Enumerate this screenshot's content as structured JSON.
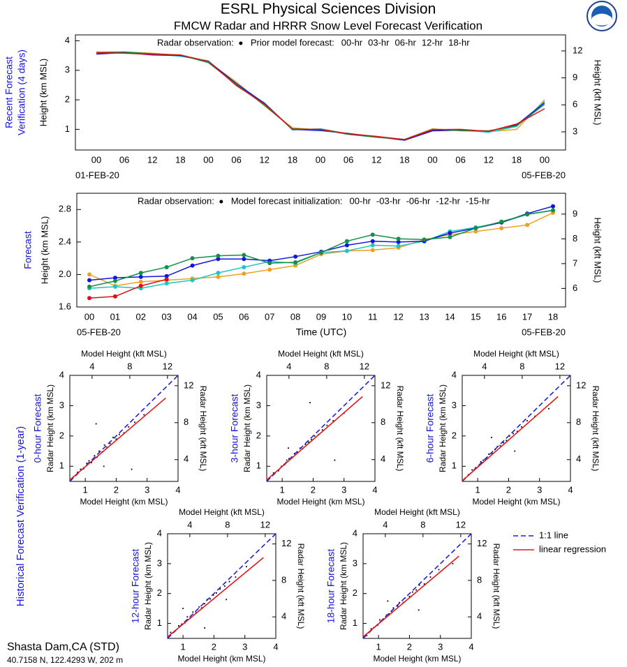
{
  "header": {
    "title": "ESRL Physical Sciences Division",
    "subtitle": "FMCW Radar and HRRR Snow Level Forecast Verification"
  },
  "footer": {
    "station": "Shasta Dam,CA (STD)",
    "location": "40.7158 N, 122.4293 W, 202 m"
  },
  "scatter_group": {
    "label": "Historical Forecast Verification (1-year)",
    "legend": [
      {
        "label": "1:1 line",
        "color": "#1f1fd8",
        "dashed": true
      },
      {
        "label": "linear regression",
        "color": "#e01818",
        "dashed": false
      }
    ]
  },
  "chart_data": [
    {
      "type": "line",
      "side_label": [
        "Recent Forecast",
        "Verification (4 days)"
      ],
      "ylabel": "Height (km MSL)",
      "y2label": "Height (kft MSL)",
      "observation_label": "Radar observation:",
      "legend_prefix": "Prior model forecast:",
      "categories": [
        "00",
        "06",
        "12",
        "18",
        "00",
        "06",
        "12",
        "18",
        "00",
        "06",
        "12",
        "18",
        "00",
        "06",
        "12",
        "18",
        "00"
      ],
      "date_labels": [
        "01-FEB-20",
        "05-FEB-20"
      ],
      "ylim": [
        0.3,
        4.2
      ],
      "yticks": [
        1,
        2,
        3,
        4
      ],
      "y2lim": [
        0.98,
        13.78
      ],
      "y2ticks": [
        3,
        6,
        9,
        12
      ],
      "markers": false,
      "series": [
        {
          "name": "00-hr",
          "color": "#f0a020",
          "values": [
            3.62,
            3.62,
            3.58,
            3.5,
            3.28,
            2.6,
            1.8,
            1.05,
            0.98,
            0.85,
            0.76,
            0.66,
            1.02,
            0.95,
            0.92,
            1.0,
            2.0
          ]
        },
        {
          "name": "03-hr",
          "color": "#20c4c4",
          "values": [
            3.58,
            3.6,
            3.55,
            3.48,
            3.32,
            2.5,
            1.9,
            0.98,
            1.02,
            0.84,
            0.74,
            0.64,
            0.98,
            0.98,
            0.9,
            1.1,
            1.95
          ]
        },
        {
          "name": "06-hr",
          "color": "#1414e0",
          "values": [
            3.55,
            3.6,
            3.52,
            3.5,
            3.3,
            2.55,
            1.88,
            1.0,
            0.96,
            0.86,
            0.75,
            0.63,
            0.95,
            0.97,
            0.94,
            1.15,
            1.9
          ]
        },
        {
          "name": "12-hr",
          "color": "#129048",
          "values": [
            3.6,
            3.62,
            3.56,
            3.52,
            3.26,
            2.52,
            1.82,
            1.02,
            0.99,
            0.83,
            0.73,
            0.66,
            1.0,
            0.96,
            0.95,
            1.12,
            1.85
          ]
        },
        {
          "name": "18-hr",
          "color": "#e01010",
          "values": [
            3.6,
            3.58,
            3.54,
            3.52,
            3.3,
            2.48,
            1.86,
            1.0,
            1.0,
            0.85,
            0.76,
            0.65,
            0.99,
            1.0,
            0.93,
            1.18,
            1.7
          ]
        }
      ]
    },
    {
      "type": "line",
      "side_label": [
        "Forecast"
      ],
      "ylabel": "Height (km MSL)",
      "y2label": "Height (kft MSL)",
      "xlabel": "Time (UTC)",
      "observation_label": "Radar observation:",
      "legend_prefix": "Model forecast initialization:",
      "categories": [
        "00",
        "01",
        "02",
        "03",
        "04",
        "05",
        "06",
        "07",
        "08",
        "09",
        "10",
        "11",
        "12",
        "13",
        "14",
        "15",
        "16",
        "17",
        "18"
      ],
      "date_labels": [
        "05-FEB-20",
        "05-FEB-20"
      ],
      "ylim": [
        1.6,
        3.0
      ],
      "yticks": [
        1.6,
        {
          "value": 2,
          "label": "2.0"
        },
        2.4,
        2.8
      ],
      "y2lim": [
        5.25,
        9.84
      ],
      "y2ticks": [
        6,
        7,
        8,
        9
      ],
      "markers": true,
      "series": [
        {
          "name": "00-hr",
          "color": "#f0a020",
          "values": [
            2.0,
            1.86,
            1.91,
            1.93,
            1.95,
            1.97,
            2.01,
            2.06,
            2.11,
            2.25,
            2.29,
            2.3,
            2.33,
            2.43,
            2.49,
            2.53,
            2.57,
            2.61,
            2.76
          ]
        },
        {
          "name": "-03-hr",
          "color": "#20c4c4",
          "values": [
            1.83,
            1.85,
            1.83,
            1.89,
            1.93,
            2.02,
            2.09,
            2.16,
            2.14,
            2.27,
            2.29,
            2.36,
            2.35,
            2.41,
            2.53,
            2.58,
            2.64,
            2.74,
            2.79
          ]
        },
        {
          "name": "-06-hr",
          "color": "#1414e0",
          "values": [
            1.93,
            1.96,
            1.97,
            1.98,
            2.11,
            2.19,
            2.19,
            2.17,
            2.22,
            2.28,
            2.36,
            2.41,
            2.4,
            2.41,
            2.51,
            2.57,
            2.64,
            2.75,
            2.84
          ]
        },
        {
          "name": "-12-hr",
          "color": "#129048",
          "values": [
            1.85,
            1.92,
            2.02,
            2.09,
            2.2,
            2.23,
            2.24,
            2.14,
            2.15,
            2.27,
            2.41,
            2.49,
            2.44,
            2.43,
            2.46,
            2.57,
            2.65,
            2.74,
            2.79
          ]
        },
        {
          "name": "-15-hr",
          "color": "#e01010",
          "values": [
            1.71,
            1.73,
            1.86,
            1.94,
            null,
            null,
            null,
            null,
            null,
            null,
            null,
            null,
            null,
            null,
            null,
            null,
            null,
            null,
            null
          ]
        }
      ]
    },
    {
      "type": "scatter",
      "title": "0-hour Forecast",
      "xlabel": "Model Height (km MSL)",
      "x2label": "Model Height (kft MSL)",
      "ylabel": "Radar Height (km MSL)",
      "y2label": "Radar Height (kft MSL)",
      "xlim": [
        0.5,
        4
      ],
      "ylim": [
        0.5,
        4
      ],
      "xticks": [
        1,
        2,
        3,
        4
      ],
      "yticks": [
        1,
        2,
        3,
        4
      ],
      "x2lim": [
        1.64,
        13.12
      ],
      "y2lim": [
        1.64,
        13.12
      ],
      "x2ticks": [
        4,
        8,
        12
      ],
      "y2ticks": [
        4,
        8,
        12
      ],
      "points": {
        "x": [
          0.62,
          0.75,
          0.85,
          0.95,
          1.05,
          1.12,
          1.2,
          1.3,
          1.38,
          1.45,
          1.55,
          1.62,
          1.7,
          1.8,
          1.9,
          2.0,
          2.1,
          2.25,
          2.4,
          2.6,
          2.9,
          1.35,
          2.5,
          1.6
        ],
        "y": [
          0.65,
          0.8,
          0.9,
          0.92,
          1.1,
          1.18,
          1.12,
          1.35,
          1.3,
          1.5,
          1.48,
          1.7,
          1.62,
          1.75,
          1.95,
          1.9,
          2.05,
          2.1,
          2.3,
          2.45,
          2.7,
          2.4,
          0.9,
          1.0
        ]
      },
      "one_to_one": {
        "x": [
          0.5,
          4
        ],
        "y": [
          0.5,
          4
        ]
      },
      "regression": {
        "x": [
          0.5,
          3.6
        ],
        "y": [
          0.55,
          3.25
        ]
      }
    },
    {
      "type": "scatter",
      "title": "3-hour Forecast",
      "xlabel": "Model Height (km MSL)",
      "x2label": "Model Height (kft MSL)",
      "ylabel": "Radar Height (km MSL)",
      "y2label": "Radar Height (kft MSL)",
      "xlim": [
        0.5,
        4
      ],
      "ylim": [
        0.5,
        4
      ],
      "xticks": [
        1,
        2,
        3,
        4
      ],
      "yticks": [
        1,
        2,
        3,
        4
      ],
      "x2lim": [
        1.64,
        13.12
      ],
      "y2lim": [
        1.64,
        13.12
      ],
      "x2ticks": [
        4,
        8,
        12
      ],
      "y2ticks": [
        4,
        8,
        12
      ],
      "points": {
        "x": [
          0.6,
          0.72,
          0.88,
          0.98,
          1.08,
          1.15,
          1.22,
          1.33,
          1.4,
          1.5,
          1.58,
          1.66,
          1.75,
          1.85,
          1.95,
          2.05,
          2.18,
          2.3,
          2.45,
          2.65,
          3.0,
          1.2,
          2.7,
          1.9
        ],
        "y": [
          0.62,
          0.78,
          0.85,
          1.0,
          1.05,
          1.2,
          1.25,
          1.3,
          1.42,
          1.45,
          1.6,
          1.58,
          1.72,
          1.8,
          1.88,
          2.0,
          2.05,
          2.2,
          2.35,
          2.5,
          2.75,
          1.6,
          1.2,
          3.1
        ]
      },
      "one_to_one": {
        "x": [
          0.5,
          4
        ],
        "y": [
          0.5,
          4
        ]
      },
      "regression": {
        "x": [
          0.5,
          3.6
        ],
        "y": [
          0.55,
          3.3
        ]
      }
    },
    {
      "type": "scatter",
      "title": "6-hour Forecast",
      "xlabel": "Model Height (km MSL)",
      "x2label": "Model Height (kft MSL)",
      "ylabel": "Radar Height (km MSL)",
      "y2label": "Radar Height (kft MSL)",
      "xlim": [
        0.5,
        4
      ],
      "ylim": [
        0.5,
        4
      ],
      "xticks": [
        1,
        2,
        3,
        4
      ],
      "yticks": [
        1,
        2,
        3,
        4
      ],
      "x2lim": [
        1.64,
        13.12
      ],
      "y2lim": [
        1.64,
        13.12
      ],
      "x2ticks": [
        4,
        8,
        12
      ],
      "y2ticks": [
        4,
        8,
        12
      ],
      "points": {
        "x": [
          0.58,
          0.7,
          0.82,
          0.93,
          1.02,
          1.1,
          1.18,
          1.28,
          1.36,
          1.47,
          1.56,
          1.64,
          1.73,
          1.83,
          1.93,
          2.03,
          2.15,
          2.28,
          2.42,
          2.6,
          2.85,
          1.45,
          2.2,
          3.3
        ],
        "y": [
          0.6,
          0.72,
          0.88,
          0.95,
          1.0,
          1.15,
          1.2,
          1.25,
          1.4,
          1.42,
          1.55,
          1.65,
          1.68,
          1.78,
          1.85,
          2.0,
          2.08,
          2.15,
          2.3,
          2.5,
          2.65,
          1.95,
          1.5,
          2.9
        ]
      },
      "one_to_one": {
        "x": [
          0.5,
          4
        ],
        "y": [
          0.5,
          4
        ]
      },
      "regression": {
        "x": [
          0.5,
          3.6
        ],
        "y": [
          0.52,
          3.3
        ]
      }
    },
    {
      "type": "scatter",
      "title": "12-hour Forecast",
      "xlabel": "Model Height (km MSL)",
      "x2label": "Model Height (kft MSL)",
      "ylabel": "Radar Height (km MSL)",
      "y2label": "Radar Height (kft MSL)",
      "xlim": [
        0.5,
        4
      ],
      "ylim": [
        0.5,
        4
      ],
      "xticks": [
        1,
        2,
        3,
        4
      ],
      "yticks": [
        1,
        2,
        3,
        4
      ],
      "x2lim": [
        1.64,
        13.12
      ],
      "y2lim": [
        1.64,
        13.12
      ],
      "x2ticks": [
        4,
        8,
        12
      ],
      "y2ticks": [
        4,
        8,
        12
      ],
      "points": {
        "x": [
          0.6,
          0.74,
          0.86,
          0.96,
          1.06,
          1.14,
          1.24,
          1.32,
          1.42,
          1.52,
          1.6,
          1.7,
          1.78,
          1.88,
          1.98,
          2.08,
          2.2,
          2.35,
          2.5,
          2.7,
          3.05,
          1.0,
          2.4,
          1.7
        ],
        "y": [
          0.7,
          0.75,
          0.92,
          0.98,
          1.02,
          1.22,
          1.18,
          1.38,
          1.36,
          1.55,
          1.52,
          1.66,
          1.8,
          1.82,
          1.95,
          2.02,
          2.15,
          2.25,
          2.4,
          2.55,
          2.9,
          1.5,
          1.8,
          0.85
        ]
      },
      "one_to_one": {
        "x": [
          0.5,
          4
        ],
        "y": [
          0.5,
          4
        ]
      },
      "regression": {
        "x": [
          0.5,
          3.6
        ],
        "y": [
          0.55,
          3.2
        ]
      }
    },
    {
      "type": "scatter",
      "title": "18-hour Forecast",
      "xlabel": "Model Height (km MSL)",
      "x2label": "Model Height (kft MSL)",
      "ylabel": "Radar Height (km MSL)",
      "y2label": "Radar Height (kft MSL)",
      "xlim": [
        0.5,
        4
      ],
      "ylim": [
        0.5,
        4
      ],
      "xticks": [
        1,
        2,
        3,
        4
      ],
      "yticks": [
        1,
        2,
        3,
        4
      ],
      "x2lim": [
        1.64,
        13.12
      ],
      "y2lim": [
        1.64,
        13.12
      ],
      "x2ticks": [
        4,
        8,
        12
      ],
      "y2ticks": [
        4,
        8,
        12
      ],
      "points": {
        "x": [
          0.62,
          0.76,
          0.84,
          0.97,
          1.04,
          1.16,
          1.26,
          1.34,
          1.44,
          1.48,
          1.62,
          1.68,
          1.8,
          1.86,
          2.0,
          2.1,
          2.22,
          2.32,
          2.48,
          2.68,
          2.95,
          1.3,
          2.3,
          3.4
        ],
        "y": [
          0.6,
          0.82,
          0.86,
          0.94,
          1.12,
          1.15,
          1.28,
          1.32,
          1.38,
          1.52,
          1.58,
          1.7,
          1.7,
          1.85,
          1.9,
          2.05,
          2.12,
          2.28,
          2.32,
          2.55,
          2.8,
          1.75,
          1.45,
          3.0
        ]
      },
      "one_to_one": {
        "x": [
          0.5,
          4
        ],
        "y": [
          0.5,
          4
        ]
      },
      "regression": {
        "x": [
          0.5,
          3.6
        ],
        "y": [
          0.55,
          3.25
        ]
      }
    }
  ]
}
